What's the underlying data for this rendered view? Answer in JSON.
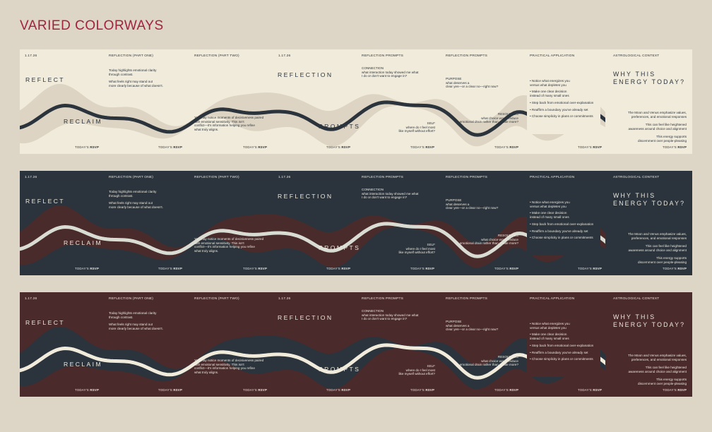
{
  "title": "VARIED COLORWAYS",
  "themes": [
    {
      "bg": "#f1ebdc",
      "band": "#ddd4c3",
      "wave": "#2b343c",
      "text": "#2b343c",
      "panel": "#f1ebdc"
    },
    {
      "bg": "#2b343c",
      "band": "#4a2b2c",
      "wave": "#d9dcd3",
      "text": "#ece7dc",
      "panel": "#2b343c"
    },
    {
      "bg": "#4a2a2b",
      "band": "#2b343c",
      "wave": "#f1ebdc",
      "text": "#ece7dc",
      "panel": "#4a2a2b"
    }
  ],
  "strip": {
    "date": "1.17.26",
    "headers": {
      "p2": "REFLECTION (PART ONE)",
      "p3": "REFLECTION (PART TWO)",
      "p4": "1.17.26",
      "p5": "REFLECTION PROMPTS",
      "p6": "REFLECTION PROMPTS",
      "p7": "PRACTICAL APPLICATION",
      "p8": "ASTROLOGICAL CONTEXT"
    },
    "reflect": "REFLECT",
    "reclaim": "RECLAIM",
    "reflection": "REFLECTION",
    "prompts": "PROMPTS",
    "why": "WHY THIS\nENERGY TODAY?",
    "p2_text1": "Today highlights emotional clarity\nthrough contrast.",
    "p2_text2": "What feels right may stand out\nmore clearly because of what doesn't.",
    "p3_text": "You may notice moments of decisiveness paired\nwith emotional sensitivity. This isn't\nconflict—it's information helping you refine\nwhat truly aligns.",
    "connection": "CONNECTION\nwhat interaction today showed me what\nI do or don't want to engage in?",
    "self": "SELF\nwhere do I feel most\nlike myself without effort?",
    "purpose": "PURPOSE\nwhat deserves a\nclear yes—or a clear no—right now?",
    "resources": "RESOURCES\nwhat choice would reduce\nemotional drain rather than create more?",
    "bullets": [
      "• Notice what energizes you\nversus what depletes you",
      "• Make one clear decision\ninstead of many small ones",
      "• Step back from emotional over-explanation",
      "• Reaffirm a boundary you've already set",
      "• Choose simplicity in plans or commitments"
    ],
    "astro1": "The Moon and Venus emphasize values,\npreferences, and emotional responses",
    "astro2": "This can feel like heightened\nawareness around choice and alignment",
    "astro3": "This energy supports\ndiscernment over people-pleasing",
    "rsvp_prefix": "TODAY'S",
    "rsvp_brand": "RSVP"
  }
}
